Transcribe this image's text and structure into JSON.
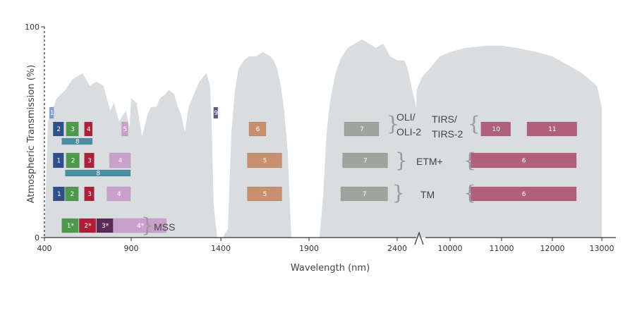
{
  "chart_data": {
    "type": "area",
    "xlabel": "Wavelength (nm)",
    "ylabel": "Atmospheric Transmission (%)",
    "ylim": [
      0,
      100
    ],
    "x_ticks": [
      "400",
      "900",
      "1400",
      "1900",
      "2400",
      "10000",
      "11000",
      "12000",
      "13000"
    ],
    "y_ticks": [
      "0",
      "100"
    ],
    "x_segments": [
      {
        "range_nm": [
          400,
          2700
        ]
      },
      {
        "range_nm": [
          9300,
          13300
        ]
      }
    ],
    "fill_color": "#d9dde0",
    "transmission": [
      {
        "segment": 0,
        "points": [
          [
            400,
            0
          ],
          [
            420,
            55
          ],
          [
            470,
            66
          ],
          [
            520,
            70
          ],
          [
            560,
            75
          ],
          [
            620,
            78
          ],
          [
            660,
            72
          ],
          [
            700,
            74
          ],
          [
            740,
            72
          ],
          [
            780,
            60
          ],
          [
            800,
            64
          ],
          [
            830,
            55
          ],
          [
            850,
            58
          ],
          [
            870,
            60
          ],
          [
            890,
            52
          ],
          [
            900,
            66
          ],
          [
            930,
            64
          ],
          [
            960,
            48
          ],
          [
            990,
            58
          ],
          [
            1010,
            62
          ],
          [
            1040,
            62
          ],
          [
            1060,
            66
          ],
          [
            1090,
            68
          ],
          [
            1110,
            70
          ],
          [
            1140,
            68
          ],
          [
            1160,
            62
          ],
          [
            1180,
            58
          ],
          [
            1200,
            50
          ],
          [
            1220,
            62
          ],
          [
            1240,
            66
          ],
          [
            1260,
            70
          ],
          [
            1280,
            74
          ],
          [
            1300,
            76
          ],
          [
            1320,
            78
          ],
          [
            1340,
            72
          ],
          [
            1350,
            50
          ],
          [
            1360,
            16
          ],
          [
            1380,
            0
          ],
          [
            1410,
            0
          ],
          [
            1440,
            4
          ],
          [
            1460,
            50
          ],
          [
            1480,
            70
          ],
          [
            1500,
            80
          ],
          [
            1530,
            84
          ],
          [
            1560,
            86
          ],
          [
            1600,
            86
          ],
          [
            1640,
            88
          ],
          [
            1680,
            86
          ],
          [
            1700,
            84
          ],
          [
            1720,
            80
          ],
          [
            1740,
            72
          ],
          [
            1760,
            60
          ],
          [
            1780,
            40
          ],
          [
            1790,
            18
          ],
          [
            1800,
            0
          ],
          [
            1960,
            0
          ],
          [
            1980,
            20
          ],
          [
            2000,
            50
          ],
          [
            2020,
            65
          ],
          [
            2050,
            78
          ],
          [
            2080,
            85
          ],
          [
            2120,
            90
          ],
          [
            2160,
            92
          ],
          [
            2200,
            94
          ],
          [
            2240,
            92
          ],
          [
            2280,
            90
          ],
          [
            2320,
            92
          ],
          [
            2360,
            86
          ],
          [
            2400,
            84
          ],
          [
            2440,
            84
          ],
          [
            2460,
            80
          ],
          [
            2480,
            72
          ],
          [
            2500,
            65
          ],
          [
            2520,
            55
          ],
          [
            2560,
            36
          ],
          [
            2600,
            20
          ],
          [
            2640,
            8
          ],
          [
            2700,
            0
          ]
        ]
      },
      {
        "segment": 1,
        "points": [
          [
            9300,
            0
          ],
          [
            9350,
            70
          ],
          [
            9450,
            76
          ],
          [
            9600,
            80
          ],
          [
            9800,
            86
          ],
          [
            10000,
            88
          ],
          [
            10300,
            90
          ],
          [
            10700,
            91
          ],
          [
            11000,
            91
          ],
          [
            11300,
            90
          ],
          [
            11700,
            88
          ],
          [
            12000,
            86
          ],
          [
            12300,
            82
          ],
          [
            12600,
            78
          ],
          [
            12900,
            72
          ],
          [
            13100,
            62
          ],
          [
            13200,
            40
          ],
          [
            13250,
            10
          ],
          [
            13300,
            0
          ]
        ]
      }
    ],
    "sensors": [
      {
        "name": [
          "OLI/",
          "OLI-2"
        ],
        "row": "oli",
        "bands": [
          {
            "label": "1",
            "nm": [
              433,
              453
            ],
            "color": "#7fa0cc",
            "sub": 0
          },
          {
            "label": "2",
            "nm": [
              450,
              515
            ],
            "color": "#2f4f8a",
            "sub": 1
          },
          {
            "label": "3",
            "nm": [
              525,
              600
            ],
            "color": "#4d9a4a",
            "sub": 1
          },
          {
            "label": "4",
            "nm": [
              630,
              680
            ],
            "color": "#b01f3a",
            "sub": 1
          },
          {
            "label": "5",
            "nm": [
              845,
              885
            ],
            "color": "#c9a0cc",
            "sub": 1
          },
          {
            "label": "8",
            "nm": [
              500,
              680
            ],
            "color": "#4b8ea0",
            "sub": 2
          },
          {
            "label": "9",
            "nm": [
              1363,
              1384
            ],
            "color": "#5b5e7e",
            "sub": 0
          },
          {
            "label": "6",
            "nm": [
              1560,
              1660
            ],
            "color": "#c8906e",
            "sub": 1
          },
          {
            "label": "7",
            "nm": [
              2100,
              2300
            ],
            "color": "#a0a49d",
            "sub": 1
          }
        ]
      },
      {
        "name": [
          "TIRS/",
          "TIRS-2"
        ],
        "row": "oli",
        "bands": [
          {
            "label": "10",
            "um_band": [
              10600,
              11190
            ],
            "color": "#b0607a",
            "sub": 1
          },
          {
            "label": "11",
            "um_band": [
              11500,
              12510
            ],
            "color": "#b0607a",
            "sub": 1
          }
        ]
      },
      {
        "name": [
          "ETM+"
        ],
        "row": "etm",
        "bands": [
          {
            "label": "1",
            "nm": [
              450,
              515
            ],
            "color": "#2f4f8a"
          },
          {
            "label": "2",
            "nm": [
              525,
              605
            ],
            "color": "#4d9a4a"
          },
          {
            "label": "3",
            "nm": [
              630,
              690
            ],
            "color": "#b01f3a"
          },
          {
            "label": "4",
            "nm": [
              775,
              900
            ],
            "color": "#c9a0cc"
          },
          {
            "label": "5",
            "nm": [
              1550,
              1750
            ],
            "color": "#c8906e"
          },
          {
            "label": "7",
            "nm": [
              2090,
              2350
            ],
            "color": "#a0a49d"
          },
          {
            "label": "6",
            "um_band": [
              10400,
              12500
            ],
            "color": "#b0607a"
          },
          {
            "label": "8",
            "nm": [
              520,
              900
            ],
            "color": "#4b8ea0",
            "sub": 2
          }
        ]
      },
      {
        "name": [
          "TM"
        ],
        "row": "tm",
        "bands": [
          {
            "label": "1",
            "nm": [
              450,
              520
            ],
            "color": "#2f4f8a"
          },
          {
            "label": "2",
            "nm": [
              520,
              600
            ],
            "color": "#4d9a4a"
          },
          {
            "label": "3",
            "nm": [
              630,
              690
            ],
            "color": "#b01f3a"
          },
          {
            "label": "4",
            "nm": [
              760,
              900
            ],
            "color": "#c9a0cc"
          },
          {
            "label": "5",
            "nm": [
              1550,
              1750
            ],
            "color": "#c8906e"
          },
          {
            "label": "7",
            "nm": [
              2080,
              2350
            ],
            "color": "#a0a49d"
          },
          {
            "label": "6",
            "um_band": [
              10400,
              12500
            ],
            "color": "#b0607a"
          }
        ]
      },
      {
        "name": [
          "MSS"
        ],
        "row": "mss",
        "bands": [
          {
            "label": "1*",
            "nm": [
              500,
              600
            ],
            "color": "#4d9a4a"
          },
          {
            "label": "2*",
            "nm": [
              600,
              700
            ],
            "color": "#b01f3a"
          },
          {
            "label": "3*",
            "nm": [
              700,
              800
            ],
            "color": "#5b2a55"
          },
          {
            "label": "4*",
            "nm": [
              800,
              1100
            ],
            "color": "#c9a0cc"
          }
        ]
      }
    ]
  }
}
